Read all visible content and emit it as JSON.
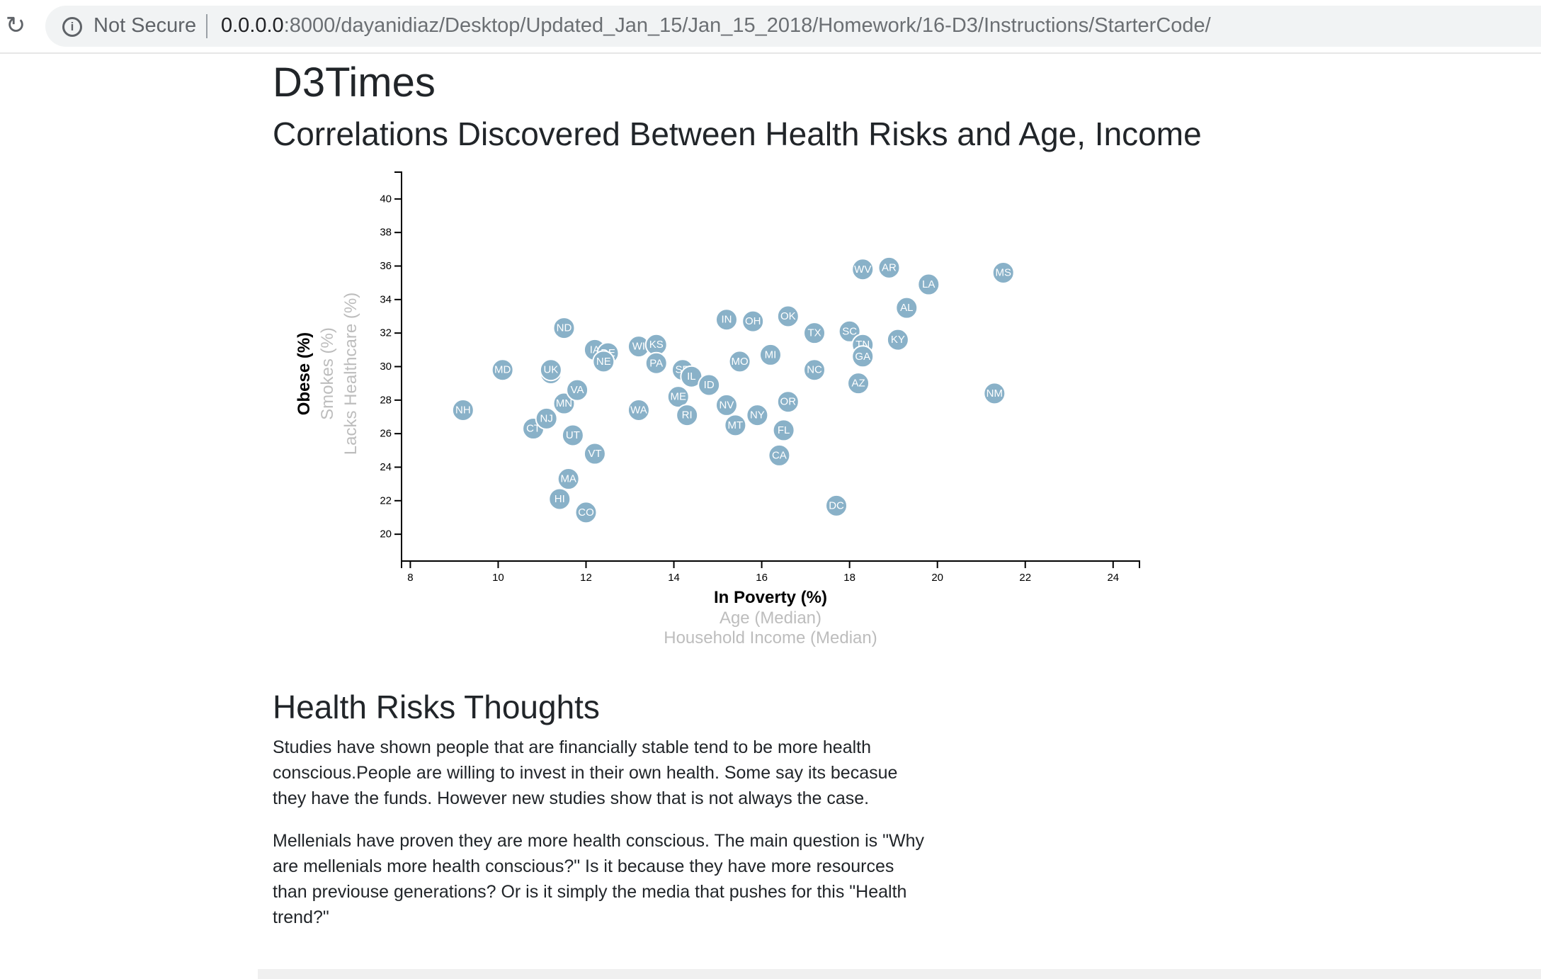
{
  "browser": {
    "security_label": "Not Secure",
    "url_host": "0.0.0.0",
    "url_path": ":8000/dayanidiaz/Desktop/Updated_Jan_15/Jan_15_2018/Homework/16-D3/Instructions/StarterCode/",
    "icons": [
      "reload-icon",
      "info-icon"
    ]
  },
  "page": {
    "site_title": "D3Times",
    "subtitle": "Correlations Discovered Between Health Risks and Age, Income"
  },
  "chart_data": {
    "type": "scatter",
    "title": "",
    "x_labels": [
      {
        "text": "In Poverty (%)",
        "active": true
      },
      {
        "text": "Age (Median)",
        "active": false
      },
      {
        "text": "Household Income (Median)",
        "active": false
      }
    ],
    "y_labels": [
      {
        "text": "Obese (%)",
        "active": true
      },
      {
        "text": "Smokes (%)",
        "active": false
      },
      {
        "text": "Lacks Healthcare (%)",
        "active": false
      }
    ],
    "xlim": [
      7.8,
      24.6
    ],
    "ylim": [
      18.4,
      41.6
    ],
    "x_ticks": [
      8,
      10,
      12,
      14,
      16,
      18,
      20,
      22,
      24
    ],
    "y_ticks": [
      20,
      22,
      24,
      26,
      28,
      30,
      32,
      34,
      36,
      38,
      40
    ],
    "grid": false,
    "marker_color": "#89b1c8",
    "points": [
      {
        "label": "NH",
        "x": 9.2,
        "y": 27.4
      },
      {
        "label": "MD",
        "x": 10.1,
        "y": 29.8
      },
      {
        "label": "CT",
        "x": 10.8,
        "y": 26.3
      },
      {
        "label": "NJ",
        "x": 11.1,
        "y": 26.9
      },
      {
        "label": "WY",
        "x": 11.2,
        "y": 29.6
      },
      {
        "label": "UK",
        "x": 11.2,
        "y": 29.8
      },
      {
        "label": "HI",
        "x": 11.4,
        "y": 22.1
      },
      {
        "label": "ND",
        "x": 11.5,
        "y": 32.3
      },
      {
        "label": "MN",
        "x": 11.5,
        "y": 27.8
      },
      {
        "label": "MA",
        "x": 11.6,
        "y": 23.3
      },
      {
        "label": "UT",
        "x": 11.7,
        "y": 25.9
      },
      {
        "label": "VA",
        "x": 11.8,
        "y": 28.6
      },
      {
        "label": "CO",
        "x": 12.0,
        "y": 21.3
      },
      {
        "label": "IA",
        "x": 12.2,
        "y": 31.0
      },
      {
        "label": "VT",
        "x": 12.2,
        "y": 24.8
      },
      {
        "label": "DE",
        "x": 12.5,
        "y": 30.8
      },
      {
        "label": "NE",
        "x": 12.4,
        "y": 30.3
      },
      {
        "label": "WI",
        "x": 13.2,
        "y": 31.2
      },
      {
        "label": "WA",
        "x": 13.2,
        "y": 27.4
      },
      {
        "label": "KS",
        "x": 13.6,
        "y": 31.3
      },
      {
        "label": "PA",
        "x": 13.6,
        "y": 30.2
      },
      {
        "label": "SD",
        "x": 14.2,
        "y": 29.8
      },
      {
        "label": "ME",
        "x": 14.1,
        "y": 28.2
      },
      {
        "label": "IL",
        "x": 14.4,
        "y": 29.4
      },
      {
        "label": "RI",
        "x": 14.3,
        "y": 27.1
      },
      {
        "label": "ID",
        "x": 14.8,
        "y": 28.9
      },
      {
        "label": "IN",
        "x": 15.2,
        "y": 32.8
      },
      {
        "label": "NV",
        "x": 15.2,
        "y": 27.7
      },
      {
        "label": "MT",
        "x": 15.4,
        "y": 26.5
      },
      {
        "label": "MO",
        "x": 15.5,
        "y": 30.3
      },
      {
        "label": "OH",
        "x": 15.8,
        "y": 32.7
      },
      {
        "label": "NY",
        "x": 15.9,
        "y": 27.1
      },
      {
        "label": "MI",
        "x": 16.2,
        "y": 30.7
      },
      {
        "label": "CA",
        "x": 16.4,
        "y": 24.7
      },
      {
        "label": "FL",
        "x": 16.5,
        "y": 26.2
      },
      {
        "label": "OR",
        "x": 16.6,
        "y": 27.9
      },
      {
        "label": "OK",
        "x": 16.6,
        "y": 33.0
      },
      {
        "label": "TX",
        "x": 17.2,
        "y": 32.0
      },
      {
        "label": "NC",
        "x": 17.2,
        "y": 29.8
      },
      {
        "label": "DC",
        "x": 17.7,
        "y": 21.7
      },
      {
        "label": "SC",
        "x": 18.0,
        "y": 32.1
      },
      {
        "label": "AZ",
        "x": 18.2,
        "y": 29.0
      },
      {
        "label": "TN",
        "x": 18.3,
        "y": 31.3
      },
      {
        "label": "GA",
        "x": 18.3,
        "y": 30.6
      },
      {
        "label": "WV",
        "x": 18.3,
        "y": 35.8
      },
      {
        "label": "AR",
        "x": 18.9,
        "y": 35.9
      },
      {
        "label": "KY",
        "x": 19.1,
        "y": 31.6
      },
      {
        "label": "AL",
        "x": 19.3,
        "y": 33.5
      },
      {
        "label": "LA",
        "x": 19.8,
        "y": 34.9
      },
      {
        "label": "NM",
        "x": 21.3,
        "y": 28.4
      },
      {
        "label": "MS",
        "x": 21.5,
        "y": 35.6
      }
    ]
  },
  "thoughts": {
    "title": "Health Risks Thoughts",
    "paragraphs": [
      "Studies have shown people that are financially stable tend to be more health conscious.People are willing to invest in their own health. Some say its becasue they have the funds. However new studies show that is not always the case.",
      "Mellenials have proven they are more health conscious. The main question is \"Why are mellenials more health conscious?\" Is it because they have more resources than previouse generations? Or is it simply the media that pushes for this \"Health trend?\""
    ]
  }
}
